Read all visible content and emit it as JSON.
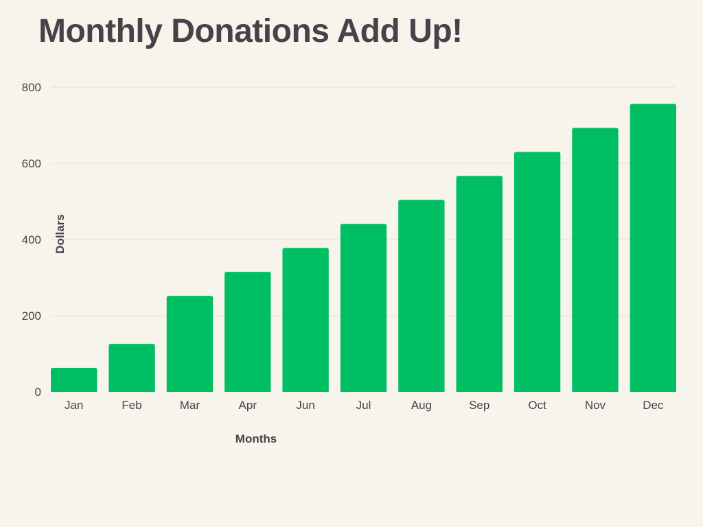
{
  "colors": {
    "background": "#f7f4ec",
    "bar": "#00bf63",
    "text": "#47424a",
    "gridline": "#e4e1da"
  },
  "chart_data": {
    "type": "bar",
    "title": "Monthly Donations Add Up!",
    "xlabel": "Months",
    "ylabel": "Dollars",
    "categories": [
      "Jan",
      "Feb",
      "Mar",
      "Apr",
      "Jun",
      "Jul",
      "Aug",
      "Sep",
      "Oct",
      "Nov",
      "Dec"
    ],
    "values": [
      63,
      126,
      252,
      315,
      378,
      441,
      504,
      567,
      630,
      693,
      756
    ],
    "ylim": [
      0,
      800
    ],
    "yticks": [
      0,
      200,
      400,
      600,
      800
    ],
    "grid": true,
    "legend": "none"
  }
}
